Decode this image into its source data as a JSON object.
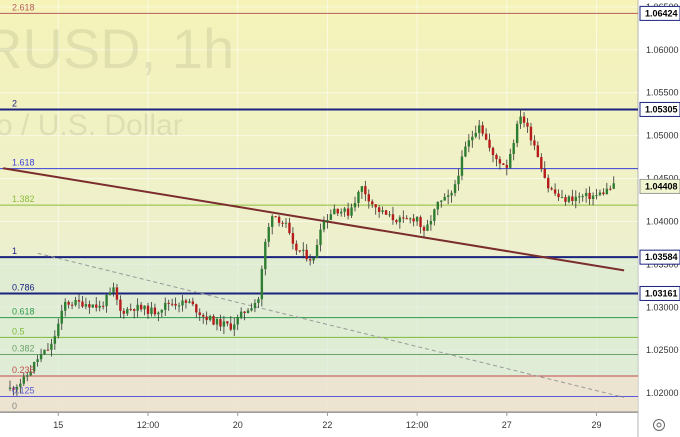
{
  "watermark": {
    "symbol": "RUSD, 1h",
    "name": "o / U.S. Dollar"
  },
  "icons": {
    "settings": "gear-icon"
  },
  "chart_data": {
    "type": "candlestick",
    "y_range": [
      1.0178,
      1.0658
    ],
    "y_ticks": [
      "1.06500",
      "1.06000",
      "1.05500",
      "1.05000",
      "1.04500",
      "1.04000",
      "1.03500",
      "1.03000",
      "1.02500",
      "1.02000"
    ],
    "y_tick_values": [
      1.065,
      1.06,
      1.055,
      1.05,
      1.045,
      1.04,
      1.035,
      1.03,
      1.025,
      1.02
    ],
    "x_ticks": [
      "15",
      "12:00",
      "20",
      "22",
      "12:00",
      "27",
      "29"
    ],
    "x_tick_bars": [
      14,
      40,
      66,
      92,
      118,
      144,
      170
    ],
    "bar_count": 178,
    "fib_levels": [
      {
        "label": "2.618",
        "value": 1.06424,
        "color": "#b85c5c"
      },
      {
        "label": "2",
        "value": 1.05305,
        "color": "#1a237e"
      },
      {
        "label": "1.618",
        "value": 1.04615,
        "color": "#3a3fd8"
      },
      {
        "label": "1.382",
        "value": 1.0419,
        "color": "#8bbd3a"
      },
      {
        "label": "1",
        "value": 1.03584,
        "color": "#1a237e"
      },
      {
        "label": "0.786",
        "value": 1.03161,
        "color": "#1a237e"
      },
      {
        "label": "0.618",
        "value": 1.0288,
        "color": "#2e9a4a"
      },
      {
        "label": "0.5",
        "value": 1.0265,
        "color": "#7cbb3a"
      },
      {
        "label": "0.382",
        "value": 1.0245,
        "color": "#6aa36a"
      },
      {
        "label": "0.236",
        "value": 1.022,
        "color": "#c24a4a"
      },
      {
        "label": "0.125",
        "value": 1.0196,
        "color": "#5a5ad8"
      },
      {
        "label": "0",
        "value": 1.0178,
        "color": "#888888"
      }
    ],
    "price_tags": [
      {
        "label": "1.06424",
        "value": 1.06424,
        "bg": "#ffffff",
        "border": "#1a237e"
      },
      {
        "label": "1.05305",
        "value": 1.05305,
        "bg": "#ffffff",
        "border": "#1a237e"
      },
      {
        "label": "1.04408",
        "value": 1.04408,
        "bg": "#f2f6d0",
        "border": "#999999"
      },
      {
        "label": "1.03584",
        "value": 1.03584,
        "bg": "#ffffff",
        "border": "#1a237e"
      },
      {
        "label": "1.03161",
        "value": 1.03161,
        "bg": "#ffffff",
        "border": "#1a237e"
      }
    ],
    "trendlines": [
      {
        "name": "resistance",
        "color": "#7b2d2d",
        "from": {
          "bar": -2,
          "price": 1.0462
        },
        "to": {
          "bar": 178,
          "price": 1.0343
        }
      },
      {
        "name": "dashed",
        "color": "#999999",
        "dashed": true,
        "from": {
          "bar": 8,
          "price": 1.0363
        },
        "to": {
          "bar": 178,
          "price": 1.0195
        }
      }
    ],
    "anchors": [
      {
        "bar": 0,
        "price": 1.0205
      },
      {
        "bar": 4,
        "price": 1.0215
      },
      {
        "bar": 8,
        "price": 1.024
      },
      {
        "bar": 12,
        "price": 1.0255
      },
      {
        "bar": 16,
        "price": 1.0305
      },
      {
        "bar": 22,
        "price": 1.0305
      },
      {
        "bar": 26,
        "price": 1.03
      },
      {
        "bar": 30,
        "price": 1.032
      },
      {
        "bar": 32,
        "price": 1.0295
      },
      {
        "bar": 36,
        "price": 1.03
      },
      {
        "bar": 42,
        "price": 1.0295
      },
      {
        "bar": 46,
        "price": 1.0305
      },
      {
        "bar": 52,
        "price": 1.0305
      },
      {
        "bar": 56,
        "price": 1.029
      },
      {
        "bar": 60,
        "price": 1.0282
      },
      {
        "bar": 64,
        "price": 1.0278
      },
      {
        "bar": 68,
        "price": 1.0295
      },
      {
        "bar": 72,
        "price": 1.031
      },
      {
        "bar": 74,
        "price": 1.0375
      },
      {
        "bar": 76,
        "price": 1.041
      },
      {
        "bar": 80,
        "price": 1.0395
      },
      {
        "bar": 82,
        "price": 1.037
      },
      {
        "bar": 84,
        "price": 1.0365
      },
      {
        "bar": 86,
        "price": 1.036
      },
      {
        "bar": 88,
        "price": 1.0355
      },
      {
        "bar": 90,
        "price": 1.0395
      },
      {
        "bar": 94,
        "price": 1.0415
      },
      {
        "bar": 98,
        "price": 1.041
      },
      {
        "bar": 102,
        "price": 1.044
      },
      {
        "bar": 106,
        "price": 1.0415
      },
      {
        "bar": 110,
        "price": 1.0405
      },
      {
        "bar": 114,
        "price": 1.04
      },
      {
        "bar": 118,
        "price": 1.0405
      },
      {
        "bar": 120,
        "price": 1.0385
      },
      {
        "bar": 124,
        "price": 1.042
      },
      {
        "bar": 128,
        "price": 1.043
      },
      {
        "bar": 132,
        "price": 1.0485
      },
      {
        "bar": 136,
        "price": 1.0515
      },
      {
        "bar": 140,
        "price": 1.0475
      },
      {
        "bar": 144,
        "price": 1.0465
      },
      {
        "bar": 148,
        "price": 1.0525
      },
      {
        "bar": 152,
        "price": 1.049
      },
      {
        "bar": 156,
        "price": 1.044
      },
      {
        "bar": 160,
        "price": 1.0425
      },
      {
        "bar": 164,
        "price": 1.0428
      },
      {
        "bar": 170,
        "price": 1.043
      },
      {
        "bar": 175,
        "price": 1.0441
      }
    ]
  }
}
